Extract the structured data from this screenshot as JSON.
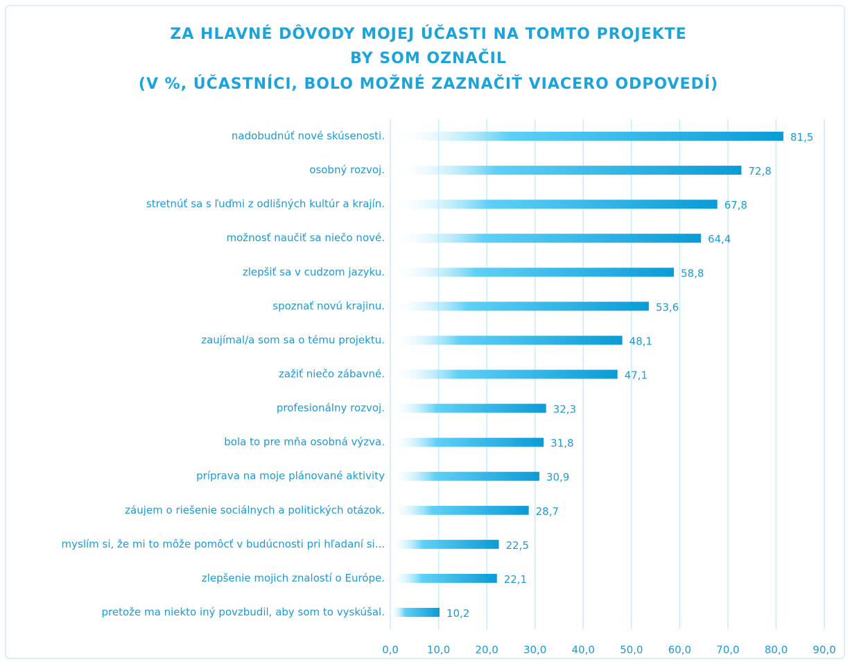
{
  "chart_data": {
    "type": "barh",
    "title": [
      "ZA HLAVNÉ DÔVODY MOJEJ ÚČASTI NA TOMTO PROJEKTE",
      "BY SOM OZNAČIL",
      "(V %, ÚČASTNÍCI, BOLO MOŽNÉ ZAZNAČIŤ VIACERO ODPOVEDÍ)"
    ],
    "categories": [
      "nadobudnúť nové skúsenosti.",
      "osobný rozvoj.",
      "stretnúť sa s ľuďmi z odlišných kultúr a krajín.",
      "možnosť naučiť sa niečo nové.",
      "zlepšiť sa v cudzom jazyku.",
      "spoznať novú krajinu.",
      "zaujímal/a som sa o tému projektu.",
      "zažiť niečo zábavné.",
      "profesionálny rozvoj.",
      "bola to pre mňa osobná výzva.",
      "príprava na moje plánované aktivity",
      "záujem o riešenie sociálnych a politických otázok.",
      "myslím si, že mi to môže pomôcť v budúcnosti pri hľadaní si...",
      "zlepšenie mojich znalostí o Európe.",
      "pretože ma niekto iný povzbudil, aby som to vyskúšal."
    ],
    "values": [
      81.5,
      72.8,
      67.8,
      64.4,
      58.8,
      53.6,
      48.1,
      47.1,
      32.3,
      31.8,
      30.9,
      28.7,
      22.5,
      22.1,
      10.2
    ],
    "value_labels": [
      "81,5",
      "72,8",
      "67,8",
      "64,4",
      "58,8",
      "53,6",
      "48,1",
      "47,1",
      "32,3",
      "31,8",
      "30,9",
      "28,7",
      "22,5",
      "22,1",
      "10,2"
    ],
    "color": "#0a9bd6",
    "xlim": [
      0,
      90
    ],
    "xticks": [
      {
        "value": 0,
        "label": "0,0"
      },
      {
        "value": 10,
        "label": "10,0"
      },
      {
        "value": 20,
        "label": "20,0"
      },
      {
        "value": 30,
        "label": "30,0"
      },
      {
        "value": 40,
        "label": "40,0"
      },
      {
        "value": 50,
        "label": "50,0"
      },
      {
        "value": 60,
        "label": "60,0"
      },
      {
        "value": 70,
        "label": "70,0"
      },
      {
        "value": 80,
        "label": "80,0"
      },
      {
        "value": 90,
        "label": "90,0"
      }
    ],
    "grid": true
  }
}
